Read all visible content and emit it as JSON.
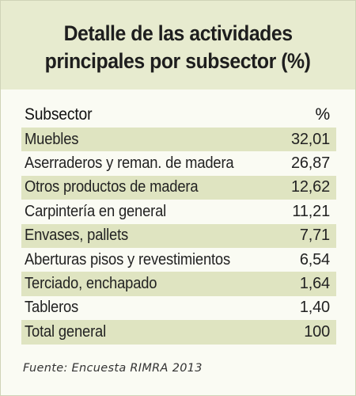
{
  "title": {
    "line1": "Detalle de las actividades",
    "line2": "principales por subsector (%)"
  },
  "table": {
    "headers": {
      "subsector": "Subsector",
      "percent": "%"
    },
    "rows": [
      {
        "name": "Muebles",
        "value": "32,01"
      },
      {
        "name": "Aserraderos y reman. de madera",
        "value": "26,87"
      },
      {
        "name": "Otros productos de madera",
        "value": "12,62"
      },
      {
        "name": "Carpintería en general",
        "value": "11,21"
      },
      {
        "name": "Envases, pallets",
        "value": "7,71"
      },
      {
        "name": "Aberturas pisos y revestimientos",
        "value": "6,54"
      },
      {
        "name": "Terciado, enchapado",
        "value": "1,64"
      },
      {
        "name": "Tableros",
        "value": "1,40"
      },
      {
        "name": "Total general",
        "value": "100"
      }
    ]
  },
  "source": "Fuente: Encuesta RIMRA 2013",
  "colors": {
    "title_background": "#e7ebcf",
    "row_shade": "#dfe4c1",
    "card_background": "#fafbf3"
  }
}
